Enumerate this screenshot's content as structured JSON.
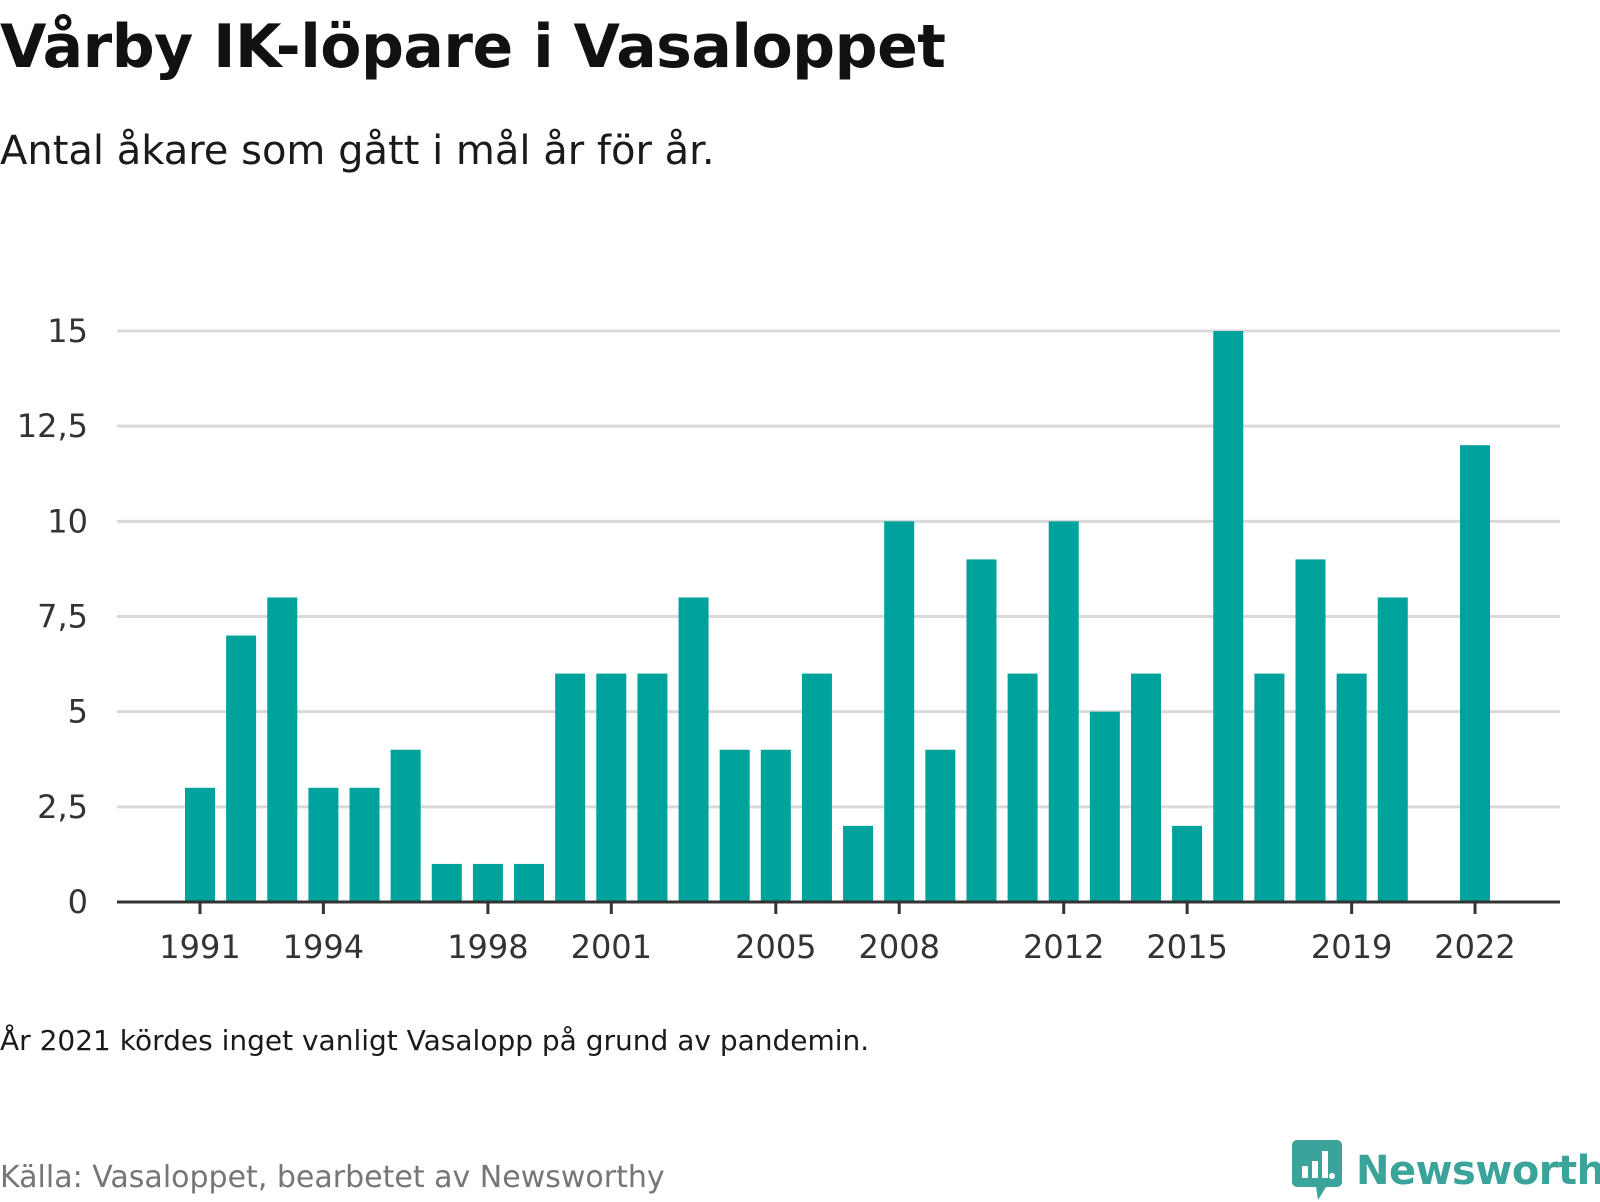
{
  "header": {
    "title": "Vårby IK-löpare i Vasaloppet",
    "subtitle": "Antal åkare som gått i mål år för år."
  },
  "footer": {
    "note": "År 2021 kördes inget vanligt Vasalopp på grund av pandemin.",
    "source": "Källa: Vasaloppet, bearbetet av Newsworthy",
    "brand": "Newsworthy"
  },
  "colors": {
    "bar": "#00a39b",
    "grid": "#d9d9d9",
    "axis": "#333333",
    "brand": "#3aa39a"
  },
  "chart_data": {
    "type": "bar",
    "title": "Vårby IK-löpare i Vasaloppet",
    "subtitle": "Antal åkare som gått i mål år för år.",
    "xlabel": "",
    "ylabel": "",
    "categories": [
      1991,
      1992,
      1993,
      1994,
      1995,
      1996,
      1997,
      1998,
      1999,
      2000,
      2001,
      2002,
      2003,
      2004,
      2005,
      2006,
      2007,
      2008,
      2009,
      2010,
      2011,
      2012,
      2013,
      2014,
      2015,
      2016,
      2017,
      2018,
      2019,
      2020,
      2021,
      2022
    ],
    "values": [
      3,
      7,
      8,
      3,
      3,
      4,
      1,
      1,
      1,
      6,
      6,
      6,
      8,
      4,
      4,
      6,
      2,
      10,
      4,
      9,
      6,
      10,
      5,
      6,
      2,
      15,
      6,
      9,
      6,
      8,
      null,
      12
    ],
    "ylim": [
      0,
      15
    ],
    "yticks": [
      0,
      2.5,
      5,
      7.5,
      10,
      12.5,
      15
    ],
    "ytick_labels": [
      "0",
      "2,5",
      "5",
      "7,5",
      "10",
      "12,5",
      "15"
    ],
    "xtick_labels": [
      "1991",
      "1994",
      "1998",
      "2001",
      "2005",
      "2008",
      "2012",
      "2015",
      "2019",
      "2022"
    ],
    "grid": true,
    "legend": "none"
  }
}
